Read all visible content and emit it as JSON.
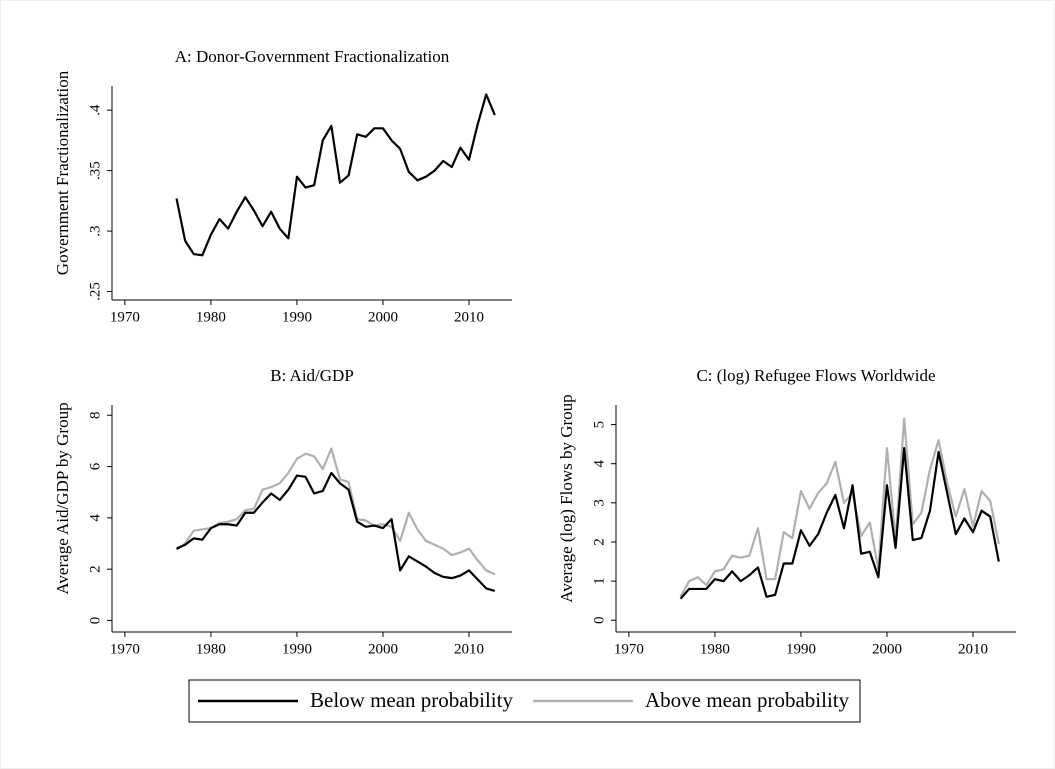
{
  "chart_data": [
    {
      "type": "line",
      "title": "A: Donor-Government Fractionalization",
      "y_label": "Government Fractionalization",
      "x": [
        1976,
        1977,
        1978,
        1979,
        1980,
        1981,
        1982,
        1983,
        1984,
        1985,
        1986,
        1987,
        1988,
        1989,
        1990,
        1991,
        1992,
        1993,
        1994,
        1995,
        1996,
        1997,
        1998,
        1999,
        2000,
        2001,
        2002,
        2003,
        2004,
        2005,
        2006,
        2007,
        2008,
        2009,
        2010,
        2011,
        2012,
        2013
      ],
      "series": [
        {
          "color": "#000000",
          "values": [
            0.327,
            0.292,
            0.281,
            0.28,
            0.297,
            0.31,
            0.302,
            0.316,
            0.328,
            0.317,
            0.304,
            0.316,
            0.302,
            0.294,
            0.345,
            0.336,
            0.338,
            0.375,
            0.387,
            0.34,
            0.346,
            0.38,
            0.378,
            0.385,
            0.385,
            0.375,
            0.368,
            0.349,
            0.342,
            0.345,
            0.35,
            0.358,
            0.353,
            0.369,
            0.359,
            0.388,
            0.413,
            0.396
          ]
        }
      ],
      "xlim": [
        1968.5,
        2015
      ],
      "xticks": [
        1970,
        1980,
        1990,
        2000,
        2010
      ],
      "ylim": [
        0.243,
        0.42
      ],
      "yticks": [
        {
          "value": 0.25,
          "label": ".25"
        },
        {
          "value": 0.3,
          "label": ".3"
        },
        {
          "value": 0.35,
          "label": ".35"
        },
        {
          "value": 0.4,
          "label": ".4"
        }
      ]
    },
    {
      "type": "line",
      "title": "B: Aid/GDP",
      "y_label": "Average Aid/GDP by Group",
      "x": [
        1976,
        1977,
        1978,
        1979,
        1980,
        1981,
        1982,
        1983,
        1984,
        1985,
        1986,
        1987,
        1988,
        1989,
        1990,
        1991,
        1992,
        1993,
        1994,
        1995,
        1996,
        1997,
        1998,
        1999,
        2000,
        2001,
        2002,
        2003,
        2004,
        2005,
        2006,
        2007,
        2008,
        2009,
        2010,
        2011,
        2012,
        2013
      ],
      "series": [
        {
          "name": "Below mean probability",
          "color": "#000000",
          "values": [
            2.8,
            2.95,
            3.2,
            3.15,
            3.6,
            3.75,
            3.75,
            3.7,
            4.2,
            4.2,
            4.6,
            4.95,
            4.7,
            5.1,
            5.65,
            5.6,
            4.95,
            5.05,
            5.75,
            5.35,
            5.1,
            3.85,
            3.65,
            3.7,
            3.6,
            3.95,
            1.95,
            2.5,
            2.3,
            2.1,
            1.85,
            1.7,
            1.65,
            1.75,
            1.95,
            1.6,
            1.25,
            1.15
          ]
        },
        {
          "name": "Above mean probability",
          "color": "#b0b0b0",
          "values": [
            2.75,
            3.0,
            3.5,
            3.55,
            3.6,
            3.8,
            3.85,
            3.95,
            4.3,
            4.35,
            5.1,
            5.2,
            5.35,
            5.75,
            6.3,
            6.5,
            6.4,
            5.9,
            6.7,
            5.5,
            5.4,
            3.95,
            3.9,
            3.7,
            3.75,
            3.65,
            3.1,
            4.2,
            3.55,
            3.1,
            2.95,
            2.8,
            2.55,
            2.65,
            2.8,
            2.35,
            1.95,
            1.8
          ]
        }
      ],
      "xlim": [
        1968.5,
        2015
      ],
      "xticks": [
        1970,
        1980,
        1990,
        2000,
        2010
      ],
      "ylim": [
        -0.45,
        8.4
      ],
      "yticks": [
        0,
        2,
        4,
        6,
        8
      ]
    },
    {
      "type": "line",
      "title": "C: (log) Refugee Flows Worldwide",
      "y_label": "Average (log) Flows by Group",
      "x": [
        1976,
        1977,
        1978,
        1979,
        1980,
        1981,
        1982,
        1983,
        1984,
        1985,
        1986,
        1987,
        1988,
        1989,
        1990,
        1991,
        1992,
        1993,
        1994,
        1995,
        1996,
        1997,
        1998,
        1999,
        2000,
        2001,
        2002,
        2003,
        2004,
        2005,
        2006,
        2007,
        2008,
        2009,
        2010,
        2011,
        2012,
        2013
      ],
      "series": [
        {
          "color": "#000000",
          "values": [
            0.55,
            0.8,
            0.8,
            0.8,
            1.05,
            1.0,
            1.25,
            1.0,
            1.15,
            1.35,
            0.6,
            0.65,
            1.45,
            1.45,
            2.3,
            1.9,
            2.2,
            2.75,
            3.2,
            2.35,
            3.45,
            1.7,
            1.75,
            1.1,
            3.45,
            1.85,
            4.4,
            2.05,
            2.1,
            2.8,
            4.3,
            3.25,
            2.2,
            2.6,
            2.25,
            2.8,
            2.65,
            1.5
          ]
        },
        {
          "color": "#b0b0b0",
          "values": [
            0.6,
            1.0,
            1.1,
            0.9,
            1.25,
            1.3,
            1.65,
            1.6,
            1.65,
            2.35,
            1.05,
            1.05,
            2.25,
            2.1,
            3.3,
            2.85,
            3.25,
            3.5,
            4.05,
            3.0,
            3.25,
            2.15,
            2.5,
            1.3,
            4.4,
            2.05,
            5.15,
            2.45,
            2.75,
            3.85,
            4.6,
            3.5,
            2.65,
            3.35,
            2.4,
            3.3,
            3.05,
            1.95
          ]
        }
      ],
      "xlim": [
        1968.5,
        2015
      ],
      "xticks": [
        1970,
        1980,
        1990,
        2000,
        2010
      ],
      "ylim": [
        -0.3,
        5.5
      ],
      "yticks": [
        0,
        1,
        2,
        3,
        4,
        5
      ]
    }
  ]
}
